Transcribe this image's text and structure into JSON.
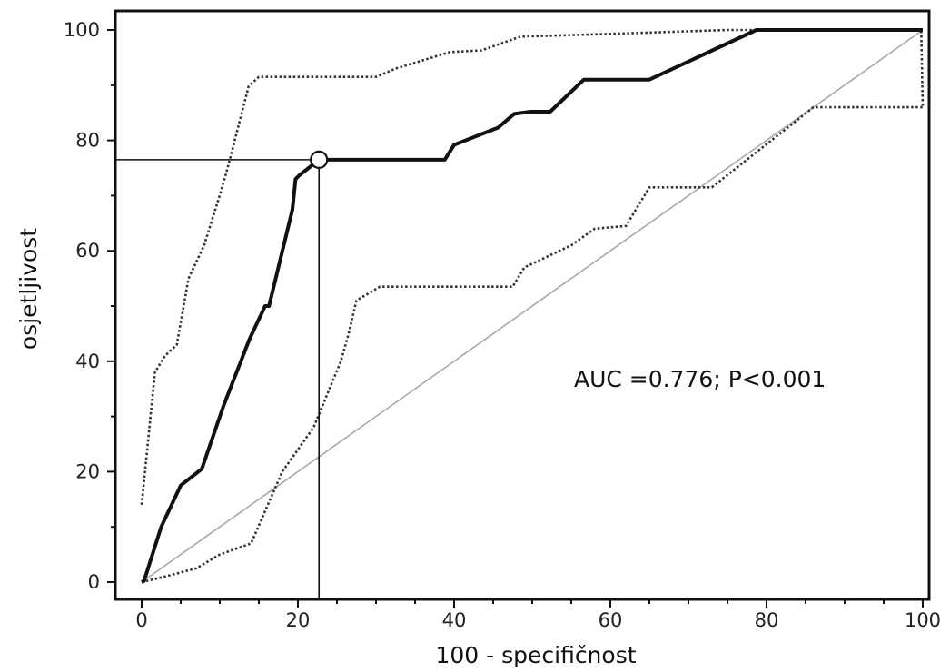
{
  "chart_data": {
    "type": "line",
    "title": "",
    "xlabel": "100 - specifičnost",
    "ylabel": "osjetljivost",
    "xlim": [
      0,
      100
    ],
    "ylim": [
      0,
      100
    ],
    "x_ticks": [
      0,
      20,
      40,
      60,
      80,
      100
    ],
    "y_ticks": [
      0,
      20,
      40,
      60,
      80,
      100
    ],
    "x_tick_labels": [
      "0",
      "20",
      "40",
      "60",
      "80",
      "100"
    ],
    "y_tick_labels": [
      "0",
      "20",
      "40",
      "60",
      "80",
      "100"
    ],
    "grid": false,
    "annotation": "AUC =0.776; P<0.001",
    "cutoff_point": {
      "x": 22.7,
      "y": 76.5
    },
    "series": [
      {
        "role": "roc-curve",
        "style": "solid",
        "x": [
          0,
          0.3,
          2.5,
          5,
          7.7,
          10.5,
          13.8,
          15.8,
          16.3,
          19.3,
          19.7,
          20.2,
          22.7,
          38.8,
          40,
          45.6,
          47.7,
          49.8,
          52.3,
          56.6,
          65,
          78.7,
          100
        ],
        "y": [
          0,
          0.2,
          10,
          17.5,
          20.5,
          32,
          44,
          50,
          50,
          67.5,
          73,
          73.7,
          76.5,
          76.5,
          79.2,
          82.3,
          84.8,
          85.2,
          85.2,
          91,
          91,
          100,
          100
        ]
      },
      {
        "role": "upper-confidence-bound",
        "style": "dotted",
        "x": [
          0,
          1.7,
          3,
          4.5,
          6,
          8,
          10.2,
          11,
          13.7,
          15,
          22,
          30,
          32.5,
          36,
          39.5,
          43.5,
          48.5,
          60,
          75,
          99.8,
          100
        ],
        "y": [
          14,
          38,
          41,
          43,
          55,
          61,
          71,
          75,
          89.8,
          91.5,
          91.5,
          91.5,
          93,
          94.5,
          96,
          96.3,
          98.8,
          99.3,
          100,
          100,
          86
        ]
      },
      {
        "role": "lower-confidence-bound",
        "style": "dotted",
        "x": [
          0,
          3,
          7,
          10,
          14,
          18,
          22,
          25.5,
          26.5,
          27.5,
          30.5,
          47.5,
          49,
          52,
          55,
          58,
          62,
          65,
          73,
          86,
          100
        ],
        "y": [
          0,
          1,
          2.5,
          5,
          7,
          20,
          28,
          40,
          45,
          51,
          53.5,
          53.5,
          57,
          59,
          61,
          64,
          64.5,
          71.5,
          71.5,
          86,
          86
        ]
      },
      {
        "role": "reference-diagonal",
        "style": "thin-gray",
        "x": [
          0,
          100
        ],
        "y": [
          0,
          100
        ]
      }
    ]
  }
}
